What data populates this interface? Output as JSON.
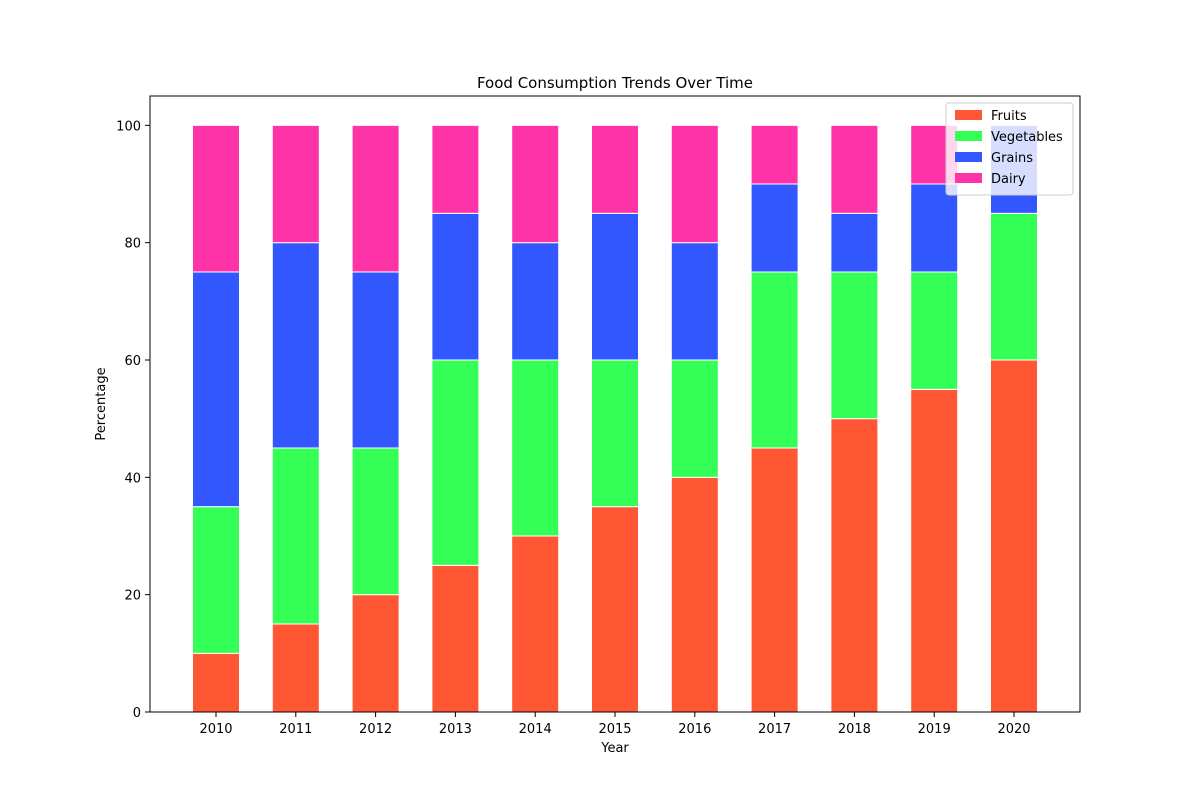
{
  "chart_data": {
    "type": "bar",
    "stacked": true,
    "title": "Food Consumption Trends Over Time",
    "xlabel": "Year",
    "ylabel": "Percentage",
    "categories": [
      "2010",
      "2011",
      "2012",
      "2013",
      "2014",
      "2015",
      "2016",
      "2017",
      "2018",
      "2019",
      "2020"
    ],
    "ylim": [
      0,
      105
    ],
    "yticks": [
      0,
      20,
      40,
      60,
      80,
      100
    ],
    "grid": false,
    "legend_position": "top-right",
    "series": [
      {
        "name": "Fruits",
        "color": "#FF5733",
        "values": [
          10,
          15,
          20,
          25,
          30,
          35,
          40,
          45,
          50,
          55,
          60
        ]
      },
      {
        "name": "Vegetables",
        "color": "#33FF57",
        "values": [
          25,
          30,
          25,
          35,
          30,
          25,
          20,
          30,
          25,
          20,
          25
        ]
      },
      {
        "name": "Grains",
        "color": "#3357FF",
        "values": [
          40,
          35,
          30,
          25,
          20,
          25,
          20,
          15,
          10,
          15,
          15
        ]
      },
      {
        "name": "Dairy",
        "color": "#FF33A8",
        "values": [
          25,
          20,
          25,
          15,
          20,
          15,
          20,
          10,
          15,
          10,
          0
        ]
      }
    ]
  }
}
